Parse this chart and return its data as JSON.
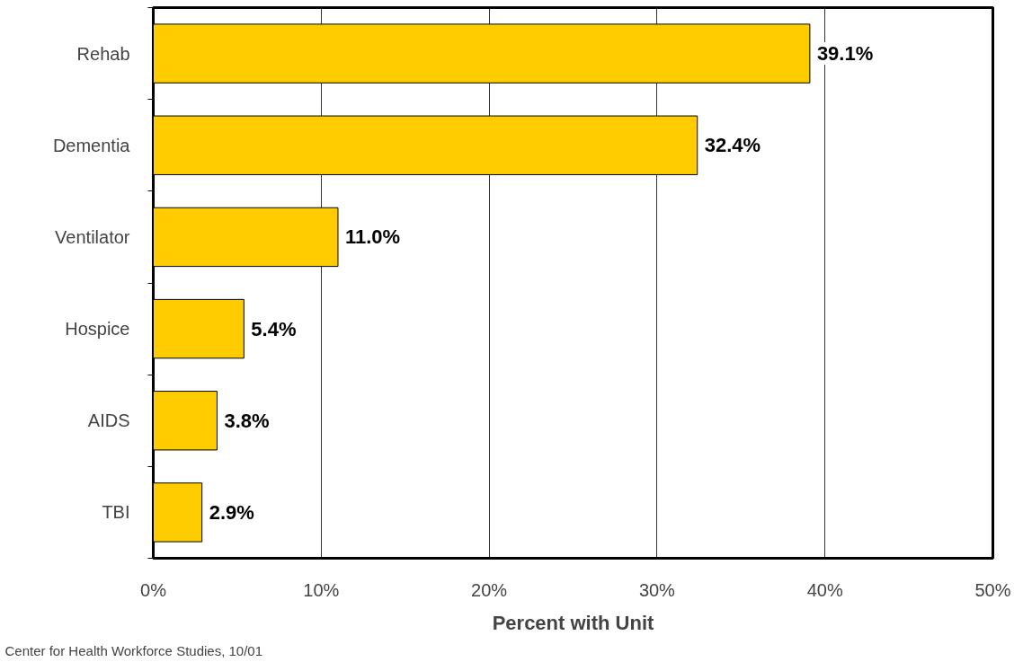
{
  "chart_data": {
    "type": "bar",
    "orientation": "horizontal",
    "xlabel": "Percent with Unit",
    "categories": [
      "Rehab",
      "Dementia",
      "Ventilator",
      "Hospice",
      "AIDS",
      "TBI"
    ],
    "values": [
      39.1,
      32.4,
      11.0,
      5.4,
      3.8,
      2.9
    ],
    "value_labels": [
      "39.1%",
      "32.4%",
      "11.0%",
      "5.4%",
      "3.8%",
      "2.9%"
    ],
    "color": "#ffcc00",
    "xlim": [
      0,
      50
    ],
    "xticks": [
      {
        "value": 0,
        "label": "0%"
      },
      {
        "value": 10,
        "label": "10%"
      },
      {
        "value": 20,
        "label": "20%"
      },
      {
        "value": 30,
        "label": "30%"
      },
      {
        "value": 40,
        "label": "40%"
      },
      {
        "value": 50,
        "label": "50%"
      }
    ],
    "grid": "x",
    "annotations": [
      "Center for Health Workforce Studies, 10/01"
    ]
  }
}
